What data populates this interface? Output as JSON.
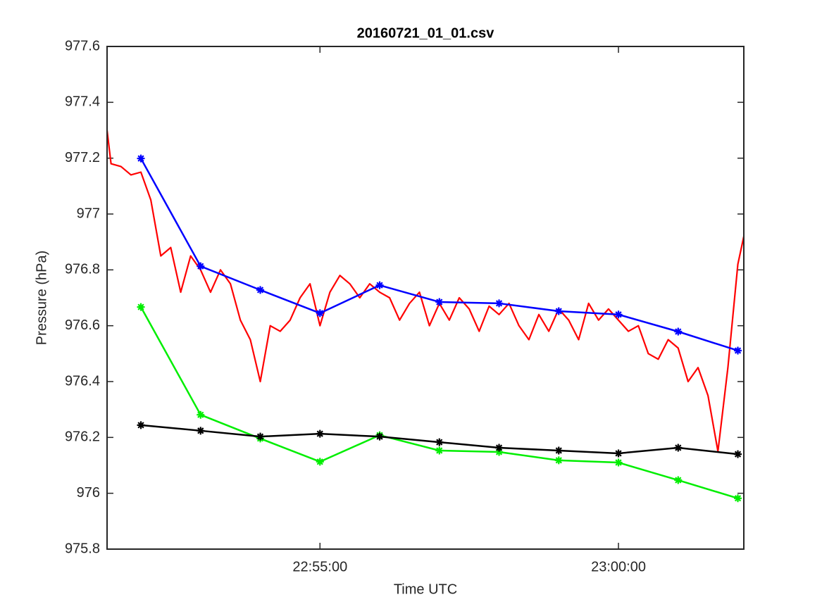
{
  "chart_data": {
    "type": "line",
    "title": "20160721_01_01.csv",
    "x_label": "Time UTC",
    "y_label": "Pressure (hPa)",
    "xlim": [
      "22:51:26",
      "23:02:06"
    ],
    "xticks": [
      "22:55:00",
      "23:00:00"
    ],
    "ylim": [
      975.8,
      977.6
    ],
    "yticks": [
      975.8,
      976,
      976.2,
      976.4,
      976.6,
      976.8,
      977,
      977.2,
      977.4,
      977.6
    ],
    "grid": false,
    "series": [
      {
        "color": "#ff0000",
        "markers": false,
        "x": [
          "22:51:26",
          "22:51:30",
          "22:51:40",
          "22:51:50",
          "22:52:00",
          "22:52:10",
          "22:52:20",
          "22:52:30",
          "22:52:40",
          "22:52:50",
          "22:53:00",
          "22:53:10",
          "22:53:20",
          "22:53:30",
          "22:53:40",
          "22:53:50",
          "22:54:00",
          "22:54:10",
          "22:54:20",
          "22:54:30",
          "22:54:40",
          "22:54:50",
          "22:55:00",
          "22:55:10",
          "22:55:20",
          "22:55:30",
          "22:55:40",
          "22:55:50",
          "22:56:00",
          "22:56:10",
          "22:56:20",
          "22:56:30",
          "22:56:40",
          "22:56:50",
          "22:57:00",
          "22:57:10",
          "22:57:20",
          "22:57:30",
          "22:57:40",
          "22:57:50",
          "22:58:00",
          "22:58:10",
          "22:58:20",
          "22:58:30",
          "22:58:40",
          "22:58:50",
          "22:59:00",
          "22:59:10",
          "22:59:20",
          "22:59:30",
          "22:59:40",
          "22:59:50",
          "23:00:00",
          "23:00:10",
          "23:00:20",
          "23:00:30",
          "23:00:40",
          "23:00:50",
          "23:01:00",
          "23:01:10",
          "23:01:20",
          "23:01:30",
          "23:01:40",
          "23:01:50",
          "23:02:00",
          "23:02:06"
        ],
        "values": [
          977.3,
          977.18,
          977.17,
          977.14,
          977.15,
          977.05,
          976.85,
          976.88,
          976.72,
          976.85,
          976.8,
          976.72,
          976.8,
          976.75,
          976.62,
          976.55,
          976.4,
          976.6,
          976.58,
          976.62,
          976.7,
          976.75,
          976.6,
          976.72,
          976.78,
          976.75,
          976.7,
          976.75,
          976.72,
          976.7,
          976.62,
          976.68,
          976.72,
          976.6,
          976.68,
          976.62,
          976.7,
          976.66,
          976.58,
          976.67,
          976.64,
          976.68,
          976.6,
          976.55,
          976.64,
          976.58,
          976.66,
          976.62,
          976.55,
          976.68,
          976.62,
          976.66,
          976.62,
          976.58,
          976.6,
          976.5,
          976.48,
          976.55,
          976.52,
          976.4,
          976.45,
          976.35,
          976.15,
          976.45,
          976.82,
          976.92
        ]
      },
      {
        "color": "#0000ff",
        "markers": true,
        "x": [
          "22:52:00",
          "22:53:00",
          "22:54:00",
          "22:55:00",
          "22:56:00",
          "22:57:00",
          "22:58:00",
          "22:59:00",
          "23:00:00",
          "23:01:00",
          "23:02:00"
        ],
        "values": [
          977.199,
          976.813,
          976.728,
          976.645,
          976.745,
          976.685,
          976.68,
          976.652,
          976.64,
          976.579,
          976.511
        ]
      },
      {
        "color": "#00ee00",
        "markers": true,
        "x": [
          "22:52:00",
          "22:53:00",
          "22:54:00",
          "22:55:00",
          "22:56:00",
          "22:57:00",
          "22:58:00",
          "22:59:00",
          "23:00:00",
          "23:01:00",
          "23:02:00"
        ],
        "values": [
          976.667,
          976.281,
          976.196,
          976.113,
          976.208,
          976.153,
          976.148,
          976.118,
          976.11,
          976.047,
          975.982
        ]
      },
      {
        "color": "#000000",
        "markers": true,
        "x": [
          "22:52:00",
          "22:53:00",
          "22:54:00",
          "22:55:00",
          "22:56:00",
          "22:57:00",
          "22:58:00",
          "22:59:00",
          "23:00:00",
          "23:01:00",
          "23:02:00"
        ],
        "values": [
          976.244,
          976.224,
          976.203,
          976.213,
          976.203,
          976.183,
          976.163,
          976.153,
          976.143,
          976.163,
          976.14
        ]
      }
    ]
  }
}
